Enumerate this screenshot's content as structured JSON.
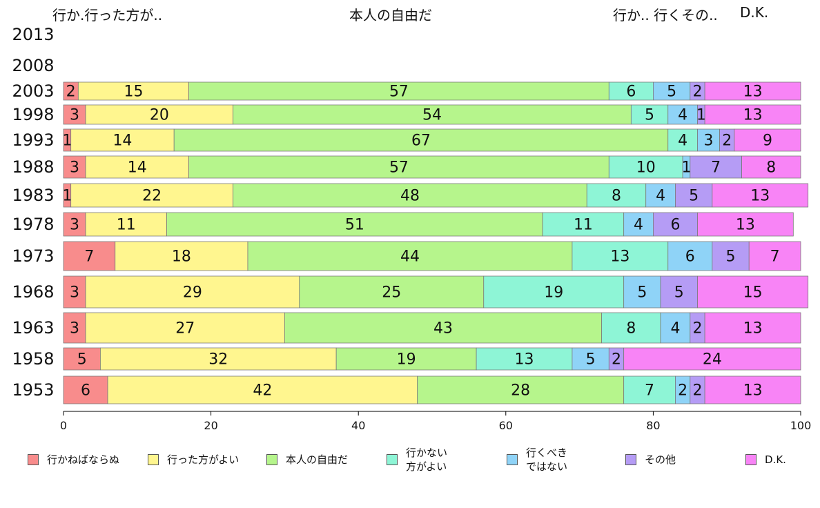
{
  "headers": {
    "left": "行か.行った方が..",
    "center": "本人の自由だ",
    "right": "行か.. 行くその..",
    "dk": "D.K."
  },
  "chart_data": {
    "type": "bar",
    "orientation": "horizontal",
    "stacked": true,
    "xlim": [
      0,
      100
    ],
    "xticks": [
      0,
      20,
      40,
      60,
      80,
      100
    ],
    "categories": [
      "2013",
      "2008",
      "2003",
      "1998",
      "1993",
      "1988",
      "1983",
      "1978",
      "1973",
      "1968",
      "1963",
      "1958",
      "1953"
    ],
    "series": [
      {
        "name": "行かねばならぬ",
        "color": "#f88c8c",
        "values": [
          null,
          null,
          2,
          3,
          1,
          3,
          1,
          3,
          7,
          3,
          3,
          5,
          6
        ]
      },
      {
        "name": "行った方がよい",
        "color": "#fff68f",
        "values": [
          null,
          null,
          15,
          20,
          14,
          14,
          22,
          11,
          18,
          29,
          27,
          32,
          42
        ]
      },
      {
        "name": "本人の自由だ",
        "color": "#b6f58c",
        "values": [
          null,
          null,
          57,
          54,
          67,
          57,
          48,
          51,
          44,
          25,
          43,
          19,
          28
        ]
      },
      {
        "name": "行かない\n方がよい",
        "color": "#8ef5d6",
        "values": [
          null,
          null,
          6,
          5,
          4,
          10,
          8,
          11,
          13,
          19,
          8,
          13,
          7
        ]
      },
      {
        "name": "行くべき\nではない",
        "color": "#8fd3f7",
        "values": [
          null,
          null,
          5,
          4,
          3,
          1,
          4,
          4,
          6,
          5,
          4,
          5,
          2
        ]
      },
      {
        "name": "その他",
        "color": "#b59cf5",
        "values": [
          null,
          null,
          2,
          1,
          2,
          7,
          5,
          6,
          5,
          5,
          2,
          2,
          2
        ]
      },
      {
        "name": "D.K.",
        "color": "#f884f6",
        "values": [
          null,
          null,
          13,
          13,
          9,
          8,
          13,
          13,
          7,
          15,
          13,
          24,
          13
        ]
      }
    ],
    "legend_position": "bottom"
  }
}
